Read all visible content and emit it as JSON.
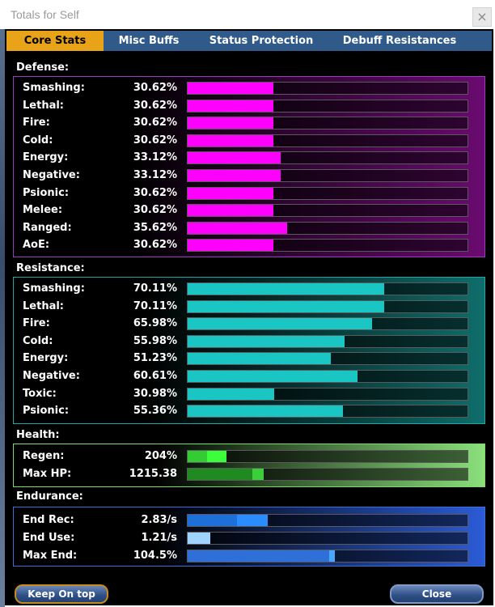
{
  "window": {
    "title": "Totals for Self",
    "close_glyph": "×"
  },
  "tabs": [
    {
      "label": "Core Stats",
      "active": true
    },
    {
      "label": "Misc Buffs",
      "active": false
    },
    {
      "label": "Status Protection",
      "active": false
    },
    {
      "label": "Debuff Resistances",
      "active": false
    }
  ],
  "defense": {
    "title": "Defense:",
    "bar_color": "#ff00ff",
    "rows": [
      {
        "label": "Smashing:",
        "value": "30.62%",
        "fill": 0.3062
      },
      {
        "label": "Lethal:",
        "value": "30.62%",
        "fill": 0.3062
      },
      {
        "label": "Fire:",
        "value": "30.62%",
        "fill": 0.3062
      },
      {
        "label": "Cold:",
        "value": "30.62%",
        "fill": 0.3062
      },
      {
        "label": "Energy:",
        "value": "33.12%",
        "fill": 0.3312
      },
      {
        "label": "Negative:",
        "value": "33.12%",
        "fill": 0.3312
      },
      {
        "label": "Psionic:",
        "value": "30.62%",
        "fill": 0.3062
      },
      {
        "label": "Melee:",
        "value": "30.62%",
        "fill": 0.3062
      },
      {
        "label": "Ranged:",
        "value": "35.62%",
        "fill": 0.3562
      },
      {
        "label": "AoE:",
        "value": "30.62%",
        "fill": 0.3062
      }
    ]
  },
  "resistance": {
    "title": "Resistance:",
    "bar_color": "#19c6c4",
    "rows": [
      {
        "label": "Smashing:",
        "value": "70.11%",
        "fill": 0.7011
      },
      {
        "label": "Lethal:",
        "value": "70.11%",
        "fill": 0.7011
      },
      {
        "label": "Fire:",
        "value": "65.98%",
        "fill": 0.6598
      },
      {
        "label": "Cold:",
        "value": "55.98%",
        "fill": 0.5598
      },
      {
        "label": "Energy:",
        "value": "51.23%",
        "fill": 0.5123
      },
      {
        "label": "Negative:",
        "value": "60.61%",
        "fill": 0.6061
      },
      {
        "label": "Toxic:",
        "value": "30.98%",
        "fill": 0.3098
      },
      {
        "label": "Psionic:",
        "value": "55.36%",
        "fill": 0.5536
      }
    ]
  },
  "health": {
    "title": "Health:",
    "rows": [
      {
        "label": "Regen:",
        "value": "204%",
        "fill": 0.07,
        "extra": 0.07,
        "color": "#33cc33",
        "extra_color": "#3cff3c"
      },
      {
        "label": "Max HP:",
        "value": "1215.38",
        "fill": 0.23,
        "extra": 0.04,
        "color": "#1f8a1f",
        "extra_color": "#3ccf3c"
      }
    ]
  },
  "endurance": {
    "title": "Endurance:",
    "rows": [
      {
        "label": "End Rec:",
        "value": "2.83/s",
        "fill": 0.175,
        "extra": 0.11,
        "color": "#1e6fd8",
        "extra_color": "#2b8cff"
      },
      {
        "label": "End Use:",
        "value": "1.21/s",
        "fill": 0.08,
        "extra": 0,
        "color": "#9fd2ff",
        "extra_color": "#9fd2ff"
      },
      {
        "label": "Max End:",
        "value": "104.5%",
        "fill": 0.505,
        "extra": 0.02,
        "color": "#2e6fd8",
        "extra_color": "#49a6ff"
      }
    ]
  },
  "buttons": {
    "keep_on_top": "Keep On top",
    "close": "Close"
  }
}
